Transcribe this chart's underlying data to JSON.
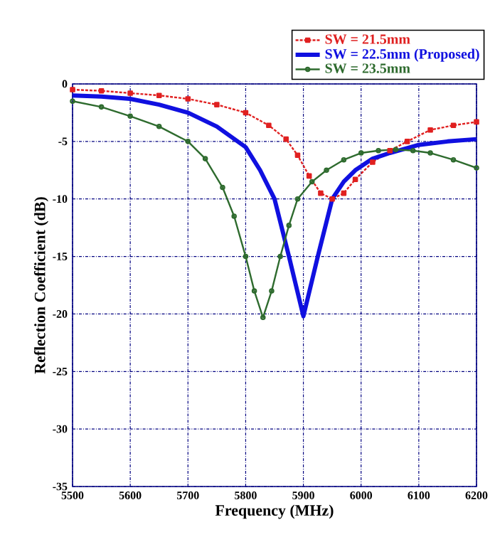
{
  "chart_data": {
    "type": "line",
    "xlabel": "Frequency (MHz)",
    "ylabel": "Reflection Coefficient (dB)",
    "xlim": [
      5500,
      6200
    ],
    "ylim": [
      -35,
      0
    ],
    "xticks": [
      5500,
      5600,
      5700,
      5800,
      5900,
      6000,
      6100,
      6200
    ],
    "yticks": [
      -35,
      -30,
      -25,
      -20,
      -15,
      -10,
      -5,
      0
    ],
    "grid": true,
    "legend": "top right",
    "series": [
      {
        "name": "SW = 21.5mm",
        "color": "#e02020",
        "marker": "square",
        "line_style": "dashed",
        "x": [
          5500,
          5550,
          5600,
          5650,
          5700,
          5750,
          5800,
          5840,
          5870,
          5890,
          5910,
          5930,
          5950,
          5970,
          5990,
          6020,
          6050,
          6080,
          6120,
          6160,
          6200
        ],
        "values": [
          -0.5,
          -0.6,
          -0.8,
          -1.0,
          -1.3,
          -1.8,
          -2.5,
          -3.6,
          -4.8,
          -6.2,
          -8.0,
          -9.5,
          -10.0,
          -9.5,
          -8.3,
          -6.8,
          -5.8,
          -5.0,
          -4.0,
          -3.6,
          -3.3
        ]
      },
      {
        "name": "SW = 22.5mm (Proposed)",
        "color": "#1010e0",
        "marker": "none",
        "line_style": "solid",
        "x": [
          5500,
          5550,
          5600,
          5650,
          5700,
          5750,
          5800,
          5825,
          5850,
          5875,
          5900,
          5925,
          5950,
          5970,
          5990,
          6020,
          6050,
          6100,
          6150,
          6200
        ],
        "values": [
          -1.0,
          -1.1,
          -1.3,
          -1.8,
          -2.5,
          -3.7,
          -5.5,
          -7.5,
          -10.0,
          -15.0,
          -20.2,
          -15.0,
          -10.0,
          -8.5,
          -7.5,
          -6.5,
          -6.0,
          -5.3,
          -5.0,
          -4.8
        ]
      },
      {
        "name": "SW = 23.5mm",
        "color": "#2e6b2e",
        "marker": "circle",
        "line_style": "solid",
        "x": [
          5500,
          5550,
          5600,
          5650,
          5700,
          5730,
          5760,
          5780,
          5800,
          5815,
          5830,
          5845,
          5860,
          5875,
          5890,
          5915,
          5940,
          5970,
          6000,
          6030,
          6060,
          6090,
          6120,
          6160,
          6200
        ],
        "values": [
          -1.5,
          -2.0,
          -2.8,
          -3.7,
          -5.0,
          -6.5,
          -9.0,
          -11.5,
          -15.0,
          -18.0,
          -20.3,
          -18.0,
          -15.0,
          -12.3,
          -10.0,
          -8.5,
          -7.5,
          -6.6,
          -6.0,
          -5.8,
          -5.7,
          -5.8,
          -6.0,
          -6.6,
          -7.3
        ]
      }
    ]
  }
}
